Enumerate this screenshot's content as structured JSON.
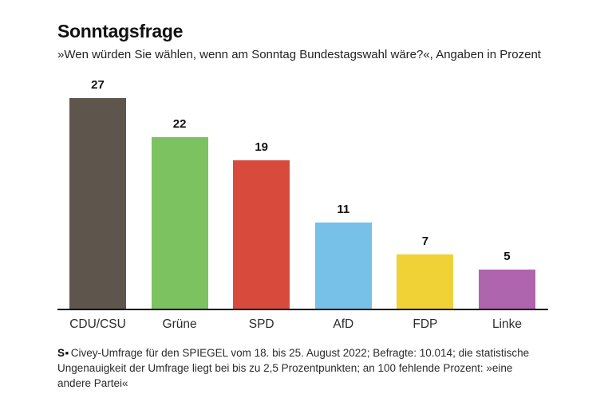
{
  "header": {
    "title": "Sonntagsfrage",
    "subtitle": "»Wen würden Sie wählen, wenn am Sonntag Bundestagswahl wäre?«, Angaben in Prozent"
  },
  "chart_data": {
    "type": "bar",
    "categories": [
      "CDU/CSU",
      "Grüne",
      "SPD",
      "AfD",
      "FDP",
      "Linke"
    ],
    "values": [
      27,
      22,
      19,
      11,
      7,
      5
    ],
    "colors": [
      "#5e564d",
      "#7cc261",
      "#d84b3c",
      "#77c1e8",
      "#f0d136",
      "#ae65ad"
    ],
    "title": "Sonntagsfrage",
    "xlabel": "",
    "ylabel": "Prozent",
    "ylim": [
      0,
      28
    ],
    "grid": false,
    "legend": "none",
    "value_labels": true,
    "axis_color": "#111111"
  },
  "footer": {
    "source_logo": "S▪",
    "source_text": "Civey-Umfrage für den SPIEGEL vom 18. bis 25. August 2022; Befragte: 10.014; die statistische Ungenauigkeit der Umfrage liegt bei bis zu 2,5 Prozentpunkten; an 100 fehlende Prozent: »eine andere Partei«"
  }
}
